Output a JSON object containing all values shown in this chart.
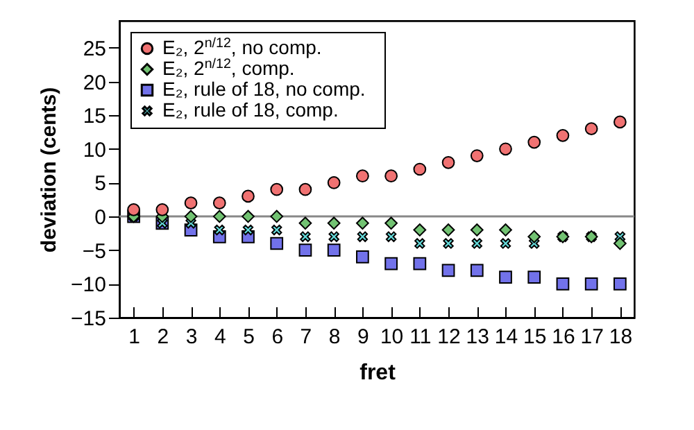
{
  "chart_data": {
    "type": "scatter",
    "xlabel": "fret",
    "ylabel": "deviation (cents)",
    "x": [
      1,
      2,
      3,
      4,
      5,
      6,
      7,
      8,
      9,
      10,
      11,
      12,
      13,
      14,
      15,
      16,
      17,
      18
    ],
    "xlim": [
      0.5,
      18.5
    ],
    "xticks": [
      1,
      2,
      3,
      4,
      5,
      6,
      7,
      8,
      9,
      10,
      11,
      12,
      13,
      14,
      15,
      16,
      17,
      18
    ],
    "ylim": [
      -15,
      29
    ],
    "yticks": [
      -15,
      -10,
      -5,
      0,
      5,
      10,
      15,
      20,
      25
    ],
    "grid": false,
    "legend": "top left",
    "ref_lines": [
      {
        "axis": "y",
        "value": 0,
        "color": "#888888"
      }
    ],
    "series": [
      {
        "name": "E₂, 2$^{n/12}$, no comp.",
        "color": "#f07272",
        "marker": "circle",
        "values": [
          1,
          1,
          2,
          2,
          3,
          4,
          4,
          5,
          6,
          6,
          7,
          8,
          9,
          10,
          11,
          12,
          13,
          14
        ]
      },
      {
        "name": "E₂, 2$^{n/12}$, comp.",
        "color": "#72c272",
        "marker": "diamond",
        "values": [
          0,
          0,
          0,
          0,
          0,
          0,
          -1,
          -1,
          -1,
          -1,
          -2,
          -2,
          -2,
          -2,
          -3,
          -3,
          -3,
          -4
        ]
      },
      {
        "name": "E₂, rule of 18, no comp.",
        "color": "#7272ea",
        "marker": "square",
        "values": [
          0,
          -1,
          -2,
          -3,
          -3,
          -4,
          -5,
          -5,
          -6,
          -7,
          -7,
          -8,
          -8,
          -9,
          -9,
          -10,
          -10,
          -10
        ]
      },
      {
        "name": "E₂, rule of 18, comp.",
        "color": "#66dede",
        "marker": "cross",
        "values": [
          0,
          -1,
          -1,
          -2,
          -2,
          -2,
          -3,
          -3,
          -3,
          -3,
          -4,
          -4,
          -4,
          -4,
          -4,
          -3,
          -3,
          -3
        ]
      }
    ]
  }
}
